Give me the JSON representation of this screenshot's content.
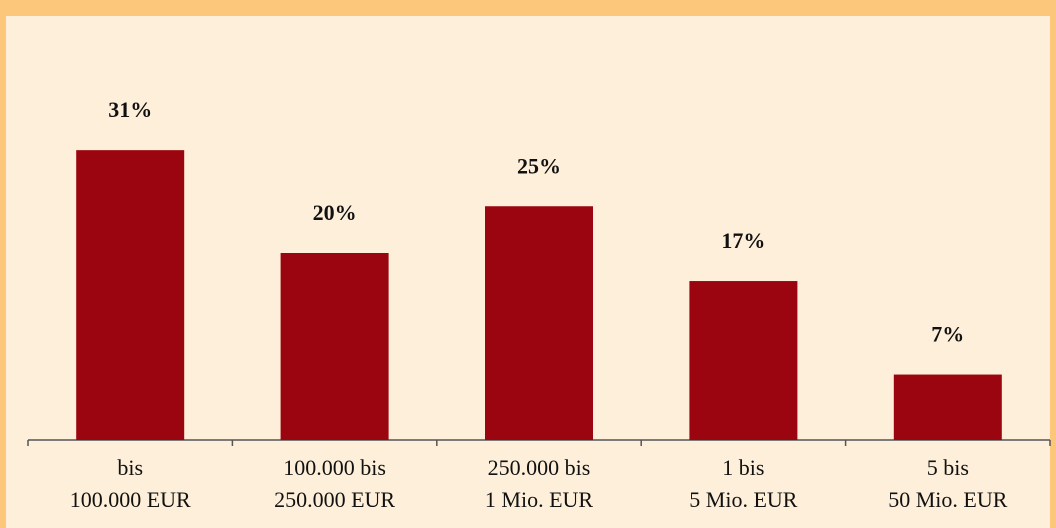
{
  "chart_data": {
    "type": "bar",
    "categories": [
      [
        "bis",
        "100.000 EUR"
      ],
      [
        "100.000 bis",
        "250.000 EUR"
      ],
      [
        "250.000 bis",
        "1 Mio. EUR"
      ],
      [
        "1 bis",
        "5 Mio. EUR"
      ],
      [
        "5 bis",
        "50 Mio. EUR"
      ]
    ],
    "values": [
      31,
      20,
      25,
      17,
      7
    ],
    "value_labels": [
      "31%",
      "20%",
      "25%",
      "17%",
      "7%"
    ],
    "color": "#9b0510"
  }
}
